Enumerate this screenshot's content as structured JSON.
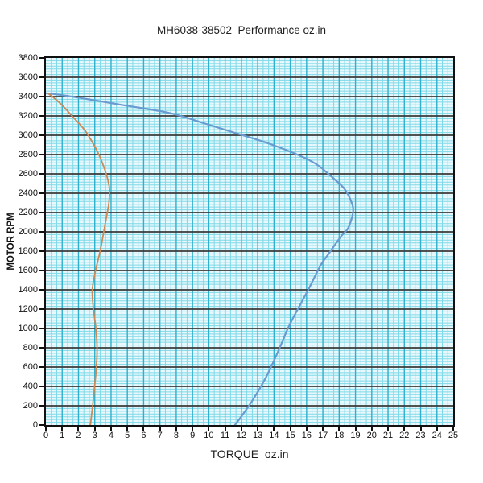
{
  "title": "MH6038-38502  Performance oz.in",
  "colors": {
    "page_bg": "#ffffff",
    "plot_bg": "#e9f8fc",
    "grid_minor": "#7fd9e7",
    "grid_major_vertical": "#2fb0cc",
    "grid_major_horizontal": "#3a3a3a",
    "axis_border": "#111111",
    "blue_curve": "#6a9bd0",
    "orange_curve": "#cb8a58",
    "text": "#1a1a1a"
  },
  "chart_data": {
    "type": "line",
    "title": "MH6038-38502  Performance oz.in",
    "xlabel": "TORQUE  oz.in",
    "ylabel": "MOTOR RPM",
    "xlim": [
      0,
      25
    ],
    "ylim": [
      0,
      3800
    ],
    "x_ticks": [
      0,
      1,
      2,
      3,
      4,
      5,
      6,
      7,
      8,
      9,
      10,
      11,
      12,
      13,
      14,
      15,
      16,
      17,
      18,
      19,
      20,
      21,
      22,
      23,
      24,
      25
    ],
    "y_ticks": [
      0,
      200,
      400,
      600,
      800,
      1000,
      1200,
      1400,
      1600,
      1800,
      2000,
      2200,
      2400,
      2600,
      2800,
      3000,
      3200,
      3400,
      3600,
      3800
    ],
    "grid": "on",
    "grid_minor_per_major_x": 3,
    "grid_minor_per_major_y": 7,
    "legend": "none",
    "series": [
      {
        "name": "blue-curve",
        "color": "#6a9bd0",
        "stroke_width": 2.2,
        "points": [
          [
            0.05,
            3435
          ],
          [
            1.2,
            3410
          ],
          [
            2.5,
            3375
          ],
          [
            4.8,
            3310
          ],
          [
            7.6,
            3230
          ],
          [
            9.5,
            3135
          ],
          [
            11.5,
            3030
          ],
          [
            13.5,
            2925
          ],
          [
            15.5,
            2795
          ],
          [
            16.6,
            2700
          ],
          [
            17.4,
            2590
          ],
          [
            18.3,
            2450
          ],
          [
            18.75,
            2310
          ],
          [
            18.85,
            2200
          ],
          [
            18.55,
            2040
          ],
          [
            18.1,
            1950
          ],
          [
            17.3,
            1760
          ],
          [
            16.85,
            1650
          ],
          [
            16.1,
            1400
          ],
          [
            15.3,
            1150
          ],
          [
            14.85,
            1000
          ],
          [
            14.4,
            820
          ],
          [
            13.9,
            630
          ],
          [
            13.4,
            460
          ],
          [
            12.7,
            260
          ],
          [
            12.0,
            90
          ],
          [
            11.6,
            0
          ]
        ]
      },
      {
        "name": "orange-curve",
        "color": "#cb8a58",
        "stroke_width": 1.8,
        "points": [
          [
            0.15,
            3430
          ],
          [
            0.4,
            3400
          ],
          [
            1.0,
            3310
          ],
          [
            1.6,
            3200
          ],
          [
            2.2,
            3090
          ],
          [
            2.6,
            3000
          ],
          [
            3.25,
            2800
          ],
          [
            3.7,
            2600
          ],
          [
            3.9,
            2450
          ],
          [
            3.87,
            2300
          ],
          [
            3.77,
            2200
          ],
          [
            3.55,
            2000
          ],
          [
            3.33,
            1800
          ],
          [
            3.05,
            1600
          ],
          [
            2.85,
            1400
          ],
          [
            2.92,
            1200
          ],
          [
            3.07,
            1000
          ],
          [
            3.14,
            800
          ],
          [
            3.1,
            600
          ],
          [
            2.99,
            400
          ],
          [
            2.87,
            200
          ],
          [
            2.73,
            0
          ]
        ]
      }
    ]
  }
}
